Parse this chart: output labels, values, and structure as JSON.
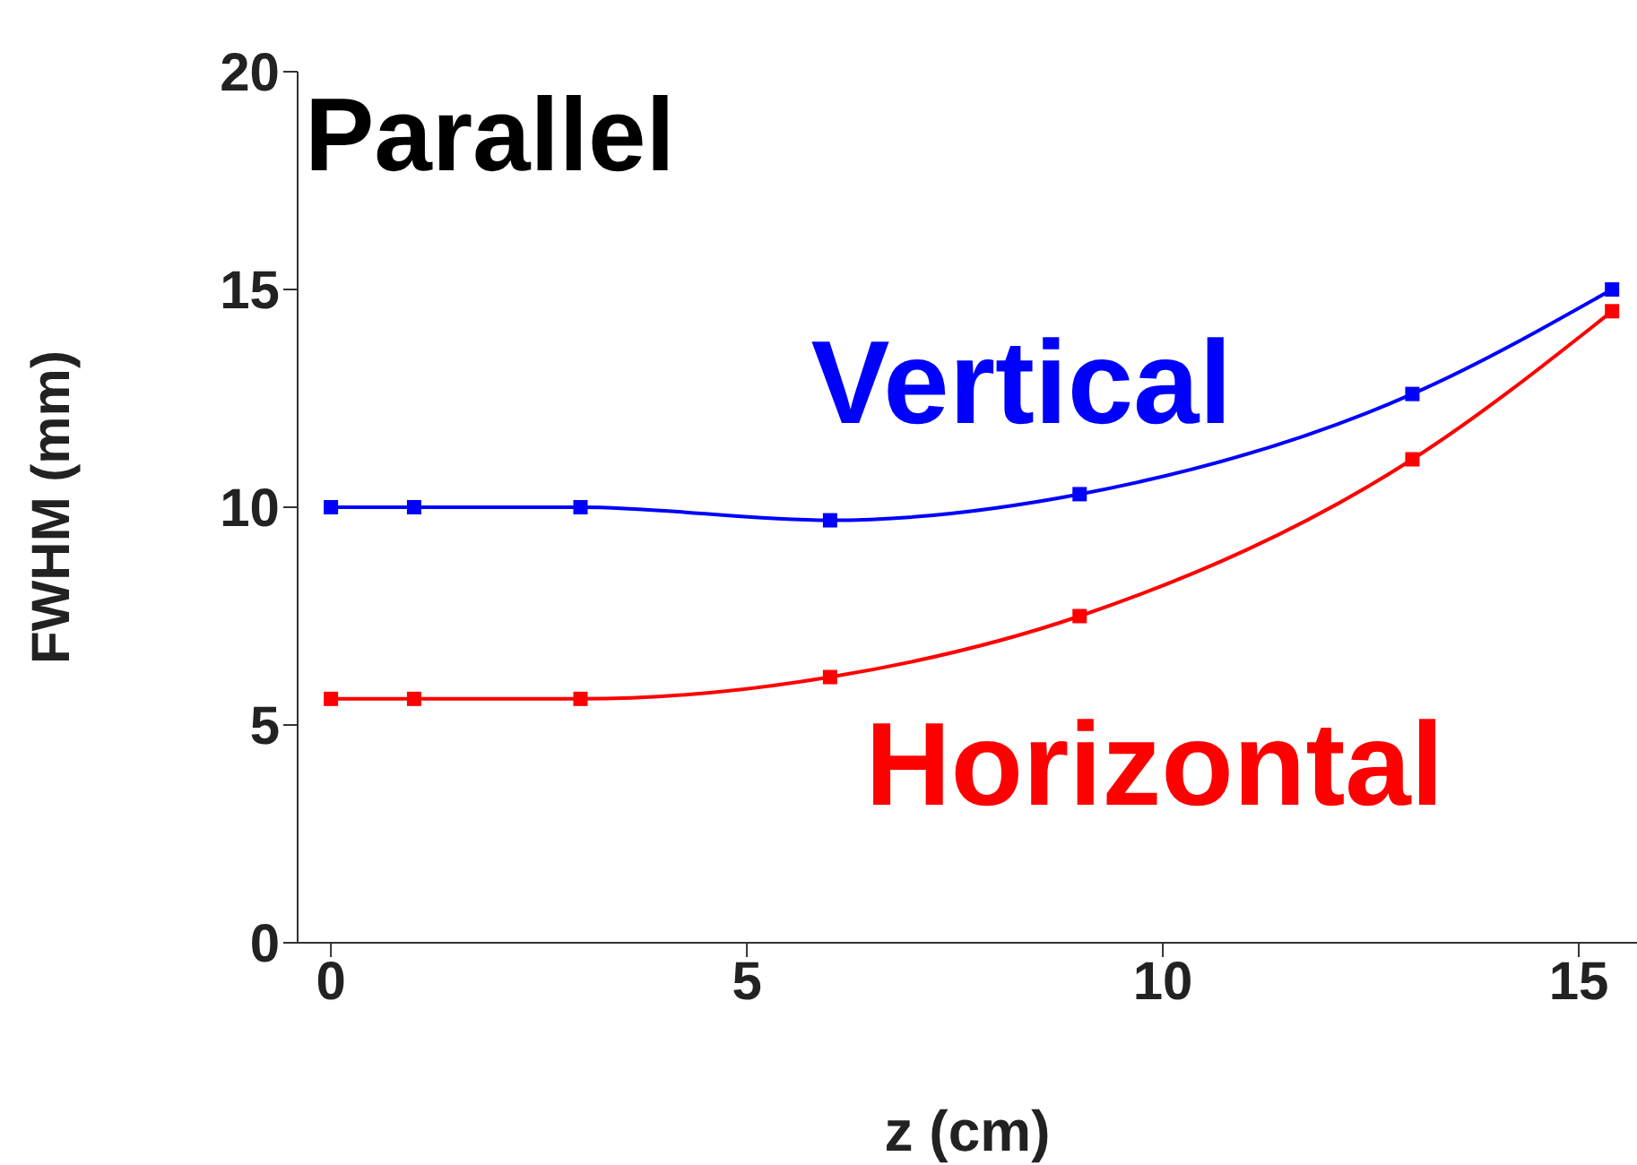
{
  "chart_data": {
    "type": "line",
    "xlabel": "z (cm)",
    "ylabel": "FWHM (mm)",
    "annotations": [
      "Parallel"
    ],
    "x": [
      0,
      1,
      3,
      6,
      9,
      13,
      15.4
    ],
    "series": [
      {
        "name": "Vertical",
        "color": "#0000ff",
        "values": [
          10.0,
          10.0,
          10.0,
          9.7,
          10.3,
          12.6,
          15.0
        ]
      },
      {
        "name": "Horizontal",
        "color": "#ff0000",
        "values": [
          5.6,
          5.6,
          5.6,
          6.1,
          7.5,
          11.1,
          14.5
        ]
      }
    ],
    "xlim": [
      -0.4,
      15.7
    ],
    "xticks": [
      0,
      5,
      10,
      15
    ],
    "ylim": [
      0,
      20
    ],
    "yticks": [
      0,
      5,
      10,
      15,
      20
    ],
    "marker": "square",
    "grid": false,
    "legend": false
  }
}
